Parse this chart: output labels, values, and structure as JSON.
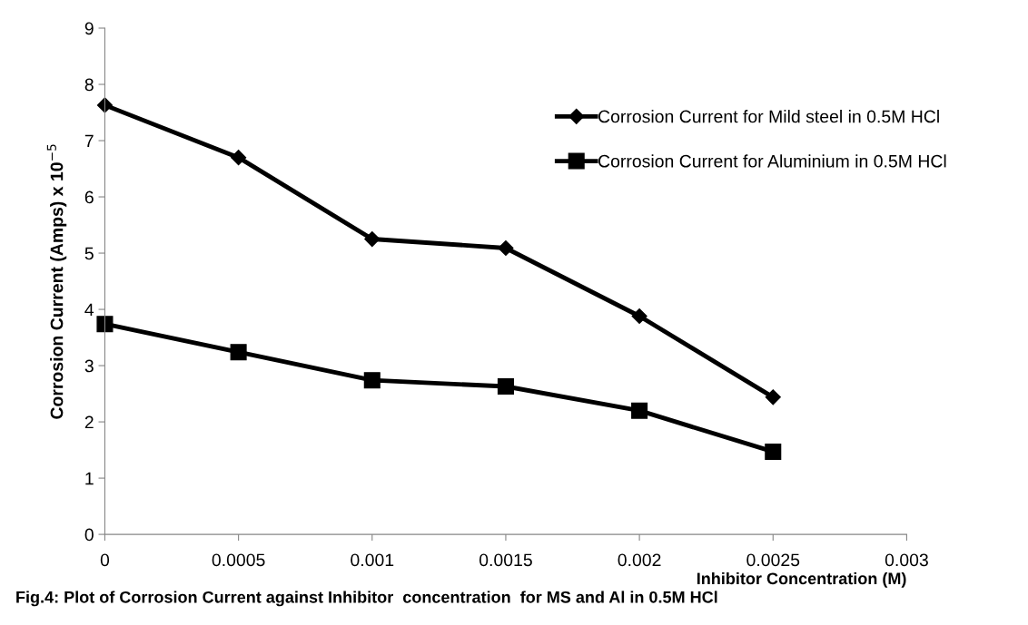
{
  "chart_data": {
    "type": "line",
    "xlabel": "Inhibitor Concentration (M)",
    "ylabel": "Corrosion Current (Amps) x 10$^{−5}$",
    "x": [
      0,
      0.0005,
      0.001,
      0.0015,
      0.002,
      0.0025
    ],
    "series": [
      {
        "name": "Corrosion Current for Mild steel in 0.5M HCl",
        "color": "#000000",
        "marker": "diamond",
        "values": [
          7.63,
          6.7,
          5.25,
          5.09,
          3.88,
          2.44
        ]
      },
      {
        "name": "Corrosion Current for Aluminium in 0.5M HCl",
        "color": "#000000",
        "marker": "square",
        "values": [
          3.74,
          3.24,
          2.74,
          2.63,
          2.2,
          1.47
        ]
      }
    ],
    "xlim": [
      0,
      0.003
    ],
    "xticks": [
      0,
      0.0005,
      0.001,
      0.0015,
      0.002,
      0.0025,
      0.003
    ],
    "ylim": [
      0,
      9
    ],
    "yticks": [
      0,
      1,
      2,
      3,
      4,
      5,
      6,
      7,
      8,
      9
    ],
    "grid": false,
    "legend": "top right",
    "line_style": "solid",
    "annotations": [
      "Fig.4: Plot of Corrosion Current against Inhibitor  concentration  for MS and Al in 0.5M HCl"
    ]
  }
}
